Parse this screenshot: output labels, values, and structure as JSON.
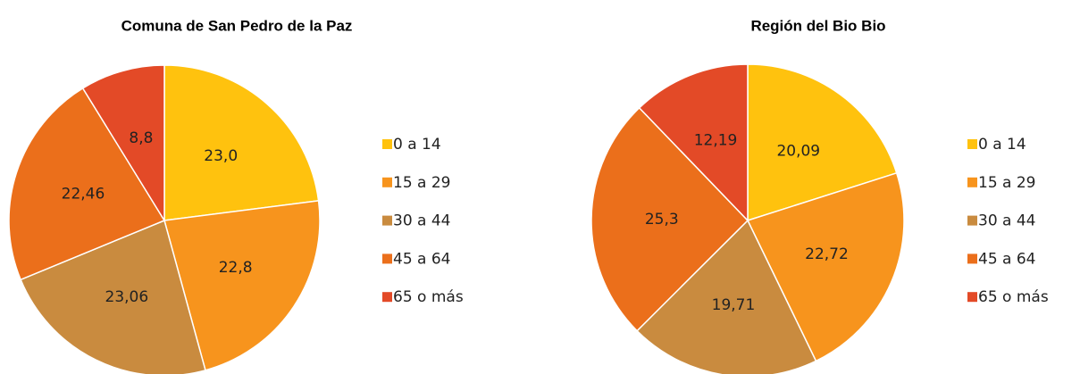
{
  "chart_data": [
    {
      "type": "pie",
      "title": "Comuna de San Pedro de la Paz",
      "categories": [
        "0 a 14",
        "15 a 29",
        "30 a 44",
        "45 a 64",
        "65 o más"
      ],
      "values": [
        23.0,
        22.8,
        23.06,
        22.46,
        8.8
      ],
      "value_labels": [
        "23,0",
        "22,8",
        "23,06",
        "22,46",
        "8,8"
      ],
      "colors": [
        "#FFC20E",
        "#F7941D",
        "#C98B3F",
        "#EB6F1B",
        "#E34A27"
      ]
    },
    {
      "type": "pie",
      "title": "Región del Bio Bio",
      "categories": [
        "0 a 14",
        "15 a 29",
        "30 a 44",
        "45 a 64",
        "65 o más"
      ],
      "values": [
        20.09,
        22.72,
        19.71,
        25.3,
        12.19
      ],
      "value_labels": [
        "20,09",
        "22,72",
        "19,71",
        "25,3",
        "12,19"
      ],
      "colors": [
        "#FFC20E",
        "#F7941D",
        "#C98B3F",
        "#EB6F1B",
        "#E34A27"
      ]
    }
  ]
}
